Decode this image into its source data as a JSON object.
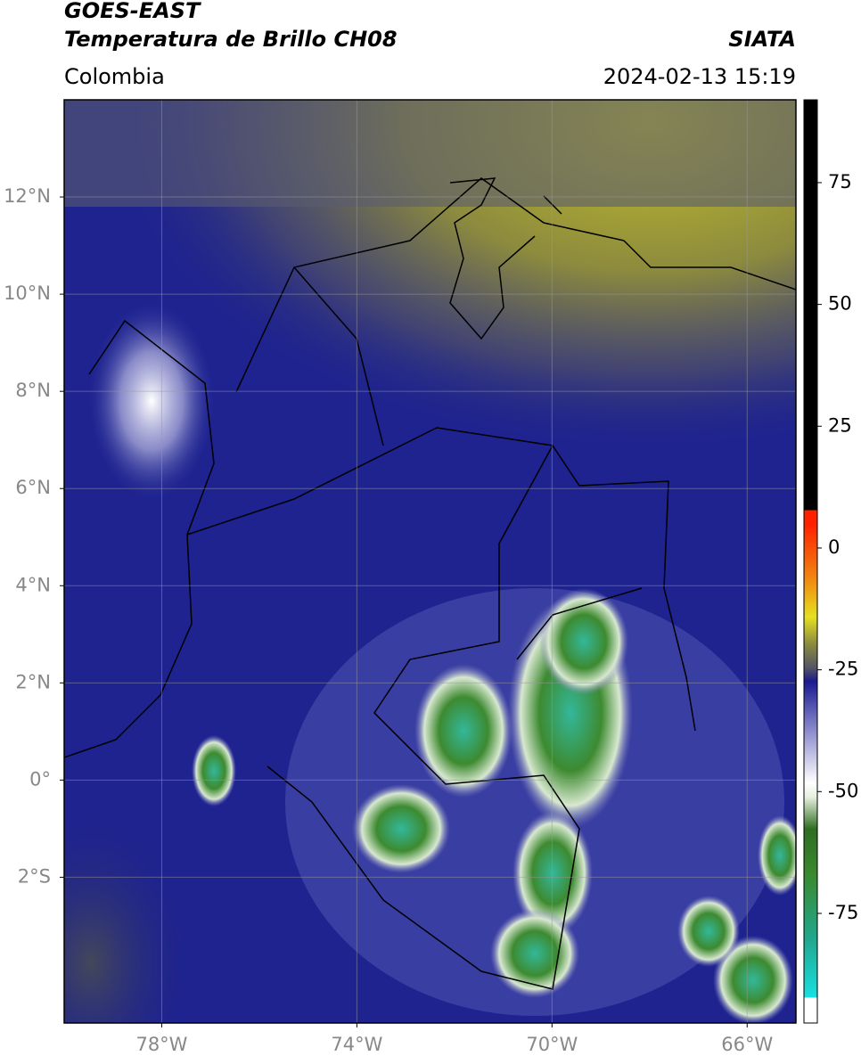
{
  "header": {
    "title": "GOES-EAST",
    "subtitle": "Temperatura de Brillo CH08",
    "region": "Colombia",
    "source": "SIATA",
    "datetime": "2024-02-13 15:19"
  },
  "map": {
    "lonlim": [
      -80,
      -65
    ],
    "latlim": [
      -5,
      14
    ],
    "lat_ticks": [
      {
        "value": 12,
        "label": "12°N"
      },
      {
        "value": 10,
        "label": "10°N"
      },
      {
        "value": 8,
        "label": "8°N"
      },
      {
        "value": 6,
        "label": "6°N"
      },
      {
        "value": 4,
        "label": "4°N"
      },
      {
        "value": 2,
        "label": "2°N"
      },
      {
        "value": 0,
        "label": "0°"
      },
      {
        "value": -2,
        "label": "2°S"
      }
    ],
    "lon_ticks": [
      {
        "value": -78,
        "label": "78°W"
      },
      {
        "value": -74,
        "label": "74°W"
      },
      {
        "value": -70,
        "label": "70°W"
      },
      {
        "value": -66,
        "label": "66°W"
      }
    ],
    "grid": true
  },
  "colorbar": {
    "lim": [
      -97.5,
      92
    ],
    "ticks": [
      75,
      50,
      25,
      0,
      -25,
      -50,
      -75
    ]
  }
}
